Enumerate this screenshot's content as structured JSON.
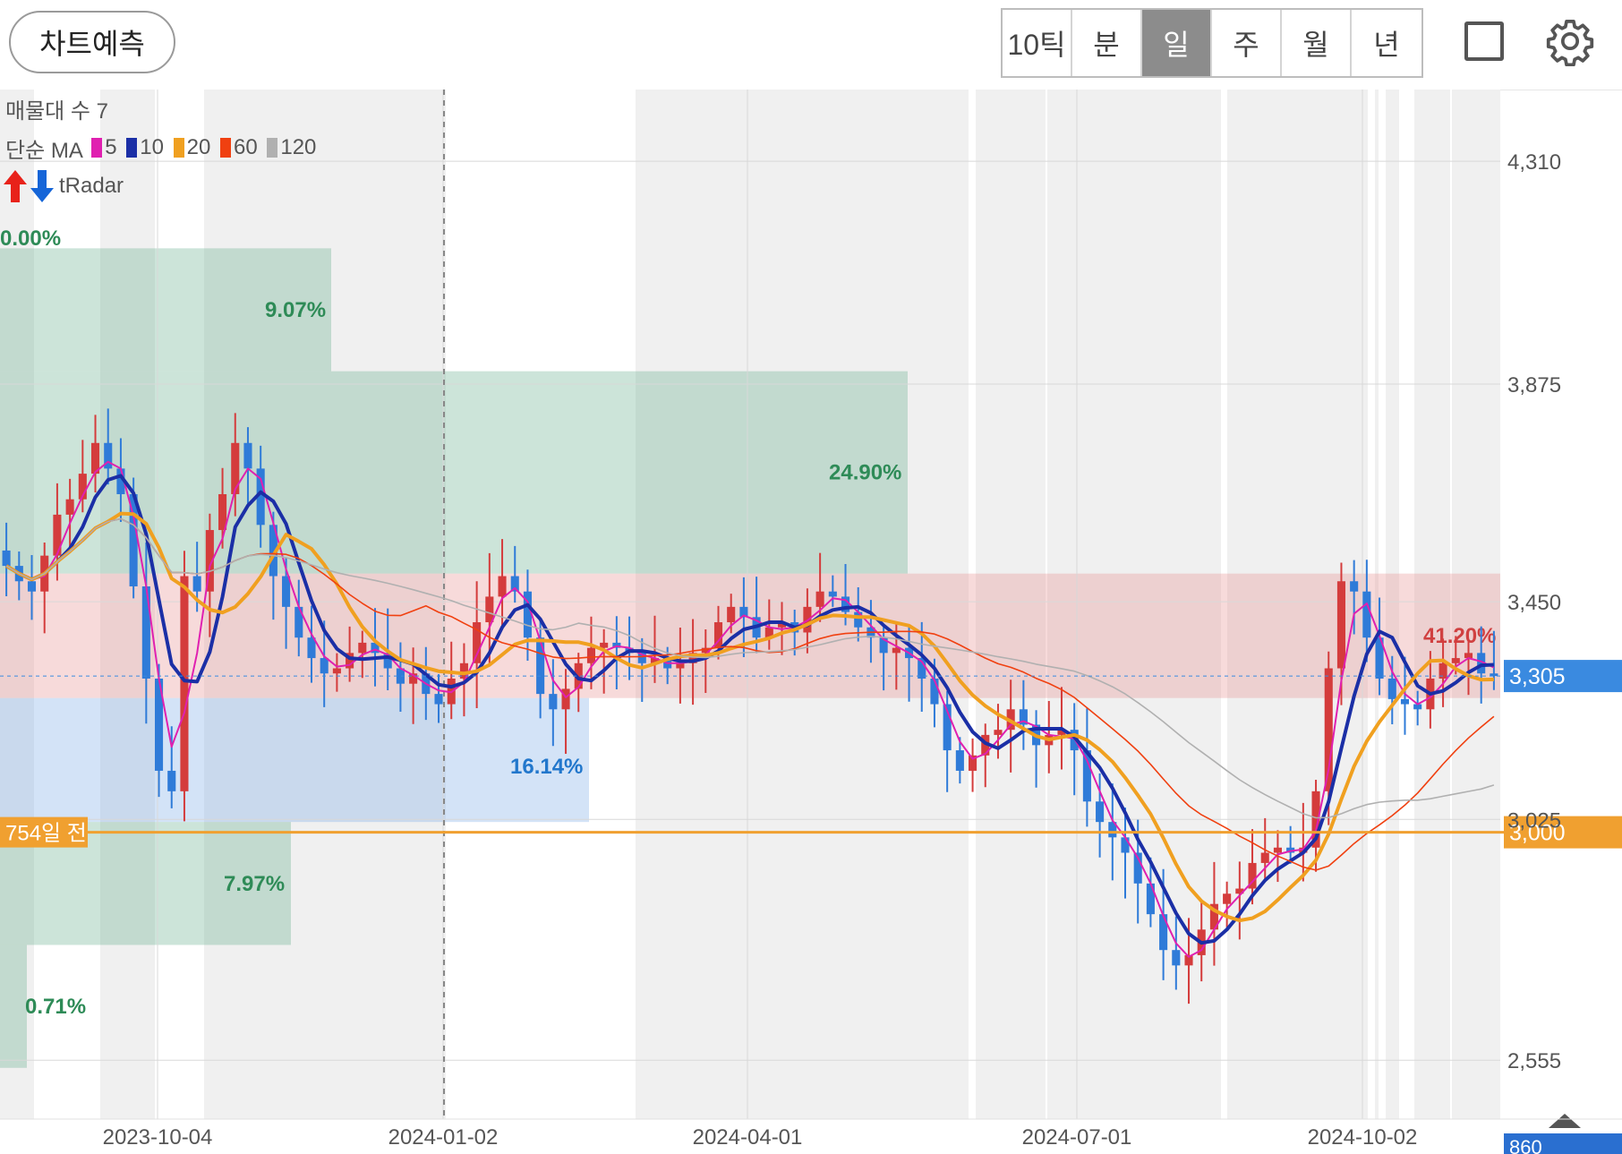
{
  "header": {
    "predict_button": "차트예측",
    "periods": [
      {
        "label": "10틱",
        "active": false
      },
      {
        "label": "분",
        "active": false
      },
      {
        "label": "일",
        "active": true
      },
      {
        "label": "주",
        "active": false
      },
      {
        "label": "월",
        "active": false
      },
      {
        "label": "년",
        "active": false
      }
    ],
    "icons": [
      "fullscreen-square-icon",
      "settings-gear-icon"
    ]
  },
  "legend": {
    "volume_profile": "매물대 수 7",
    "ma_label": "단순 MA",
    "ma_periods": [
      {
        "label": "5",
        "color": "#e020b0"
      },
      {
        "label": "10",
        "color": "#1b2fa6"
      },
      {
        "label": "20",
        "color": "#f0a020"
      },
      {
        "label": "60",
        "color": "#f04010"
      },
      {
        "label": "120",
        "color": "#b0b0b0"
      }
    ],
    "radar": "tRadar"
  },
  "chart_data": {
    "type": "candlestick",
    "x_ticks": [
      "2023-10-04",
      "2024-01-02",
      "2024-04-01",
      "2024-07-01",
      "2024-10-02"
    ],
    "y_ticks": [
      "4,310",
      "3,875",
      "3,450",
      "3,025",
      "2,555"
    ],
    "y_range": [
      2440,
      4450
    ],
    "current_price": "3,305",
    "reference_price": "3,000",
    "reference_label": "754일 전",
    "partial_bottom_label": "860",
    "closes": [
      3520,
      3490,
      3470,
      3540,
      3620,
      3650,
      3700,
      3760,
      3710,
      3660,
      3480,
      3300,
      3120,
      3080,
      3500,
      3470,
      3590,
      3660,
      3760,
      3710,
      3600,
      3500,
      3440,
      3380,
      3340,
      3310,
      3320,
      3350,
      3370,
      3350,
      3320,
      3290,
      3310,
      3270,
      3250,
      3300,
      3330,
      3410,
      3460,
      3500,
      3470,
      3380,
      3270,
      3240,
      3280,
      3330,
      3360,
      3370,
      3360,
      3350,
      3330,
      3340,
      3320,
      3330,
      3350,
      3360,
      3410,
      3440,
      3420,
      3380,
      3400,
      3410,
      3390,
      3440,
      3470,
      3460,
      3430,
      3400,
      3380,
      3350,
      3360,
      3340,
      3300,
      3250,
      3160,
      3120,
      3150,
      3190,
      3200,
      3240,
      3210,
      3170,
      3190,
      3200,
      3160,
      3060,
      3020,
      2990,
      2960,
      2900,
      2840,
      2770,
      2740,
      2760,
      2810,
      2860,
      2880,
      2890,
      2940,
      2960,
      2970,
      2960,
      2970,
      3080,
      3320,
      3490,
      3470,
      3380,
      3300,
      3260,
      3250,
      3240,
      3300,
      3330,
      3340,
      3350,
      3310,
      3305
    ],
    "ma_lines": [
      {
        "period": "5",
        "color": "#e020b0"
      },
      {
        "period": "10",
        "color": "#1b2fa6"
      },
      {
        "period": "20",
        "color": "#f0a020"
      },
      {
        "period": "60",
        "color": "#f04010"
      },
      {
        "period": "120",
        "color": "#b0b0b0"
      }
    ],
    "volume_zones": [
      {
        "low": 3900,
        "high": 4140,
        "pct": "9.07%",
        "color": "#2e8b57"
      },
      {
        "low": 3505,
        "high": 3900,
        "pct": "24.90%",
        "color": "#2e8b57"
      },
      {
        "low": 3262,
        "high": 3505,
        "pct": "41.20%",
        "color": "#d04040"
      },
      {
        "low": 3020,
        "high": 3262,
        "pct": "16.14%",
        "color": "#2277cc"
      },
      {
        "low": 2780,
        "high": 3020,
        "pct": "7.97%",
        "color": "#2e8b57"
      },
      {
        "low": 2540,
        "high": 2780,
        "pct": "0.71%",
        "color": "#2e8b57"
      }
    ],
    "zone_top_label": "0.00%",
    "grid": true
  }
}
